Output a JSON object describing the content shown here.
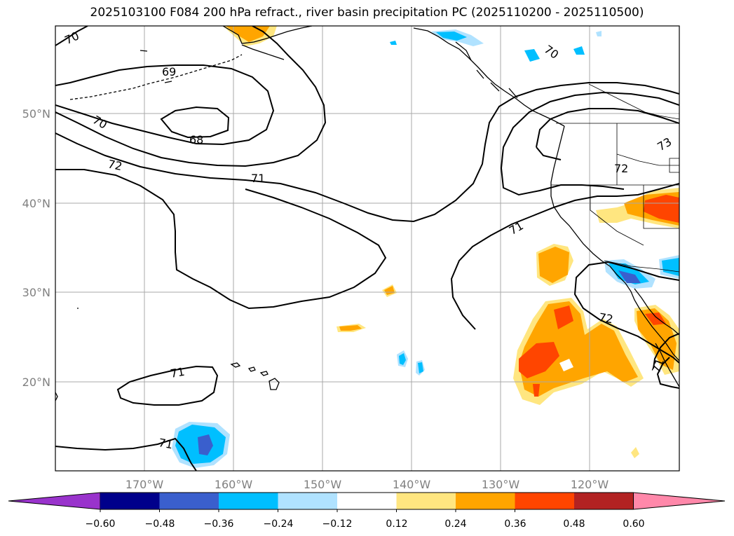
{
  "title": "2025103100 F084 200 hPa refract., river basin precipitation PC (2025110200 - 2025110500)",
  "lat_labels": [
    "50°N",
    "40°N",
    "30°N",
    "20°N"
  ],
  "lon_labels": [
    "170°W",
    "160°W",
    "150°W",
    "140°W",
    "130°W",
    "120°W"
  ],
  "contour_labels": [
    "70",
    "69",
    "70",
    "68",
    "72",
    "71",
    "70",
    "73",
    "72",
    "71",
    "72",
    "71",
    "71",
    "71"
  ],
  "colorbar": {
    "ticks": [
      "−0.60",
      "−0.48",
      "−0.36",
      "−0.24",
      "−0.12",
      "0.12",
      "0.24",
      "0.36",
      "0.48",
      "0.60"
    ],
    "colors": [
      "#9933cc",
      "#00008b",
      "#3a5fcd",
      "#00bfff",
      "#b0e2ff",
      "#ffffff",
      "#ffe680",
      "#ffa500",
      "#ff4500",
      "#b22222",
      "#ff88aa"
    ]
  },
  "colors": {
    "positive_low": "#ffe680",
    "positive_mid": "#ffa500",
    "positive_high": "#ff4500",
    "negative_low": "#b0e2ff",
    "negative_mid": "#00bfff",
    "negative_high": "#3a5fcd"
  }
}
